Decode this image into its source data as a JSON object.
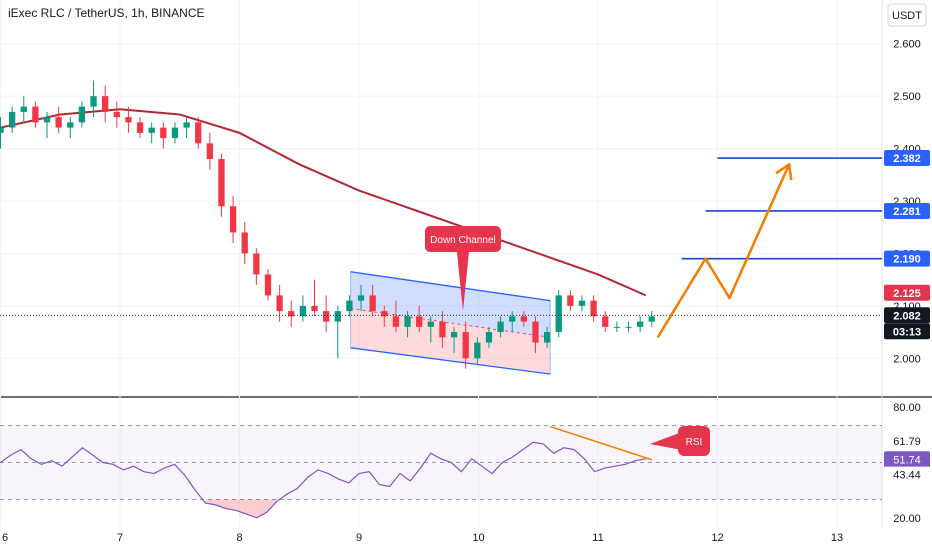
{
  "chart_data": {
    "type": "candlestick",
    "title": "iExec RLC / TetherUS, 1h, BINANCE",
    "currency": "USDT",
    "x_ticks": [
      "6",
      "7",
      "8",
      "9",
      "10",
      "11",
      "12",
      "13"
    ],
    "price_axis": {
      "ylim": [
        1.93,
        2.63
      ],
      "ticks": [
        "2.000",
        "2.100",
        "2.200",
        "2.300",
        "2.400",
        "2.500",
        "2.600"
      ]
    },
    "candles": [
      [
        2.43,
        2.46,
        2.4,
        2.44
      ],
      [
        2.44,
        2.48,
        2.43,
        2.47
      ],
      [
        2.47,
        2.5,
        2.45,
        2.48
      ],
      [
        2.48,
        2.49,
        2.44,
        2.45
      ],
      [
        2.45,
        2.47,
        2.42,
        2.46
      ],
      [
        2.46,
        2.48,
        2.43,
        2.44
      ],
      [
        2.44,
        2.46,
        2.42,
        2.45
      ],
      [
        2.45,
        2.49,
        2.44,
        2.48
      ],
      [
        2.48,
        2.53,
        2.46,
        2.5
      ],
      [
        2.5,
        2.52,
        2.45,
        2.47
      ],
      [
        2.47,
        2.49,
        2.44,
        2.46
      ],
      [
        2.46,
        2.48,
        2.43,
        2.45
      ],
      [
        2.45,
        2.46,
        2.42,
        2.43
      ],
      [
        2.43,
        2.45,
        2.41,
        2.44
      ],
      [
        2.44,
        2.45,
        2.4,
        2.42
      ],
      [
        2.42,
        2.45,
        2.41,
        2.44
      ],
      [
        2.44,
        2.46,
        2.42,
        2.45
      ],
      [
        2.45,
        2.46,
        2.4,
        2.41
      ],
      [
        2.41,
        2.43,
        2.36,
        2.38
      ],
      [
        2.38,
        2.39,
        2.27,
        2.29
      ],
      [
        2.29,
        2.31,
        2.22,
        2.24
      ],
      [
        2.24,
        2.26,
        2.18,
        2.2
      ],
      [
        2.2,
        2.21,
        2.14,
        2.16
      ],
      [
        2.16,
        2.17,
        2.11,
        2.12
      ],
      [
        2.12,
        2.14,
        2.07,
        2.09
      ],
      [
        2.09,
        2.11,
        2.06,
        2.08
      ],
      [
        2.08,
        2.12,
        2.07,
        2.1
      ],
      [
        2.1,
        2.15,
        2.08,
        2.09
      ],
      [
        2.09,
        2.12,
        2.05,
        2.07
      ],
      [
        2.07,
        2.1,
        2.0,
        2.09
      ],
      [
        2.09,
        2.12,
        2.08,
        2.11
      ],
      [
        2.11,
        2.14,
        2.09,
        2.12
      ],
      [
        2.12,
        2.14,
        2.08,
        2.09
      ],
      [
        2.09,
        2.1,
        2.06,
        2.08
      ],
      [
        2.08,
        2.11,
        2.05,
        2.06
      ],
      [
        2.06,
        2.09,
        2.04,
        2.08
      ],
      [
        2.08,
        2.1,
        2.05,
        2.06
      ],
      [
        2.06,
        2.08,
        2.03,
        2.07
      ],
      [
        2.07,
        2.09,
        2.02,
        2.04
      ],
      [
        2.04,
        2.06,
        2.01,
        2.05
      ],
      [
        2.05,
        2.07,
        1.98,
        2.0
      ],
      [
        2.0,
        2.04,
        1.99,
        2.03
      ],
      [
        2.03,
        2.06,
        2.02,
        2.05
      ],
      [
        2.05,
        2.08,
        2.04,
        2.07
      ],
      [
        2.07,
        2.09,
        2.05,
        2.08
      ],
      [
        2.08,
        2.09,
        2.06,
        2.07
      ],
      [
        2.07,
        2.08,
        2.01,
        2.03
      ],
      [
        2.03,
        2.06,
        2.02,
        2.05
      ],
      [
        2.05,
        2.13,
        2.04,
        2.12
      ],
      [
        2.12,
        2.13,
        2.09,
        2.1
      ],
      [
        2.1,
        2.12,
        2.09,
        2.11
      ],
      [
        2.11,
        2.12,
        2.07,
        2.08
      ],
      [
        2.08,
        2.09,
        2.05,
        2.06
      ],
      [
        2.06,
        2.07,
        2.05,
        2.06
      ],
      [
        2.06,
        2.07,
        2.05,
        2.06
      ],
      [
        2.06,
        2.08,
        2.05,
        2.07
      ],
      [
        2.07,
        2.09,
        2.06,
        2.08
      ]
    ],
    "moving_average": [
      [
        6.0,
        2.44
      ],
      [
        6.5,
        2.465
      ],
      [
        7.0,
        2.475
      ],
      [
        7.5,
        2.465
      ],
      [
        8.0,
        2.43
      ],
      [
        8.5,
        2.37
      ],
      [
        9.0,
        2.32
      ],
      [
        9.5,
        2.28
      ],
      [
        10.0,
        2.24
      ],
      [
        10.5,
        2.2
      ],
      [
        11.0,
        2.16
      ],
      [
        11.4,
        2.12
      ]
    ],
    "current_price": "2.082",
    "countdown": "03:13",
    "price_tags": [
      {
        "value": "2.382",
        "color": "#2962ff"
      },
      {
        "value": "2.281",
        "color": "#2962ff"
      },
      {
        "value": "2.190",
        "color": "#2962ff"
      },
      {
        "value": "2.125",
        "color": "#e5344c"
      },
      {
        "value": "2.082",
        "color": "#131722"
      }
    ],
    "target_lines": [
      {
        "x_start": 12.0,
        "x_end": 13.0,
        "price": 2.382
      },
      {
        "x_start": 11.9,
        "x_end": 13.0,
        "price": 2.281
      },
      {
        "x_start": 11.7,
        "x_end": 13.0,
        "price": 2.19
      }
    ],
    "channel": {
      "upper": [
        [
          8.93,
          2.165
        ],
        [
          10.6,
          2.11
        ]
      ],
      "mid": [
        [
          8.93,
          2.095
        ],
        [
          10.6,
          2.04
        ]
      ],
      "lower": [
        [
          8.93,
          2.02
        ],
        [
          10.6,
          1.97
        ]
      ],
      "label": "Down Channel"
    },
    "projection": [
      [
        11.5,
        2.04
      ],
      [
        11.9,
        2.19
      ],
      [
        12.1,
        2.115
      ],
      [
        12.6,
        2.37
      ]
    ],
    "rsi": {
      "label": "RSI",
      "ylim": [
        15,
        85
      ],
      "ticks": [
        "80.00",
        "20.00"
      ],
      "values_tags": [
        {
          "value": "61.79",
          "color": "#ffffff",
          "text_color": "#131722"
        },
        {
          "value": "51.74",
          "color": "#7e57c2",
          "text_color": "#ffffff"
        },
        {
          "value": "43.44",
          "color": "#ffffff",
          "text_color": "#131722"
        }
      ],
      "levels": [
        70,
        50,
        30
      ],
      "series": [
        50,
        54,
        57,
        52,
        49,
        51,
        48,
        53,
        58,
        54,
        50,
        49,
        46,
        48,
        45,
        44,
        47,
        49,
        43,
        35,
        28,
        27,
        25,
        24,
        22,
        20,
        23,
        29,
        33,
        36,
        42,
        46,
        44,
        41,
        39,
        44,
        45,
        38,
        37,
        44,
        40,
        47,
        55,
        52,
        50,
        45,
        52,
        48,
        44,
        50,
        53,
        57,
        61,
        60,
        55,
        58,
        57,
        52,
        45,
        47,
        48,
        49,
        51,
        52
      ],
      "divergence_line": [
        [
          10.6,
          69.5
        ],
        [
          11.45,
          51.5
        ]
      ]
    }
  }
}
